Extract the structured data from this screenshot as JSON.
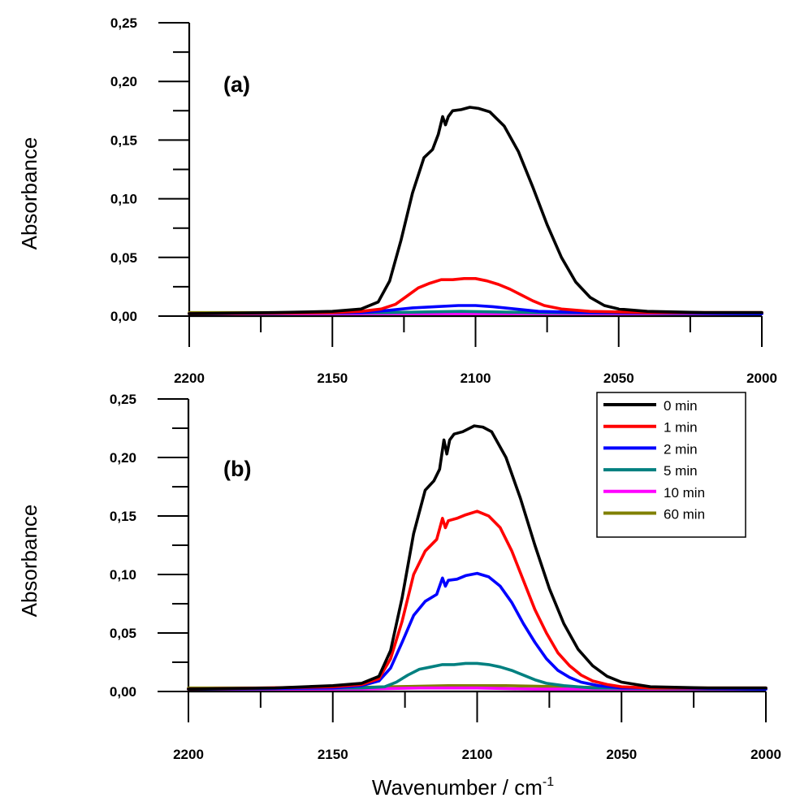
{
  "chart_data": [
    {
      "type": "line",
      "panel_label": "(a)",
      "xlabel": "",
      "ylabel": "Absorbance",
      "xlim": [
        2200,
        2000
      ],
      "ylim": [
        0,
        0.25
      ],
      "x_ticks": [
        "2200",
        "2150",
        "2100",
        "2050",
        "2000"
      ],
      "y_ticks": [
        "0,00",
        "0,05",
        "0,10",
        "0,15",
        "0,20",
        "0,25"
      ],
      "grid": false,
      "legend": null,
      "series": [
        {
          "name": "0 min",
          "color": "#000000",
          "points": [
            [
              2200,
              0.002
            ],
            [
              2170,
              0.003
            ],
            [
              2150,
              0.004
            ],
            [
              2140,
              0.006
            ],
            [
              2134,
              0.012
            ],
            [
              2130,
              0.03
            ],
            [
              2126,
              0.065
            ],
            [
              2122,
              0.105
            ],
            [
              2118,
              0.135
            ],
            [
              2115,
              0.142
            ],
            [
              2113,
              0.155
            ],
            [
              2111.5,
              0.17
            ],
            [
              2110.5,
              0.163
            ],
            [
              2109.5,
              0.17
            ],
            [
              2108,
              0.175
            ],
            [
              2105,
              0.176
            ],
            [
              2102,
              0.178
            ],
            [
              2099,
              0.177
            ],
            [
              2095,
              0.174
            ],
            [
              2090,
              0.162
            ],
            [
              2085,
              0.14
            ],
            [
              2080,
              0.11
            ],
            [
              2075,
              0.078
            ],
            [
              2070,
              0.05
            ],
            [
              2065,
              0.029
            ],
            [
              2060,
              0.016
            ],
            [
              2055,
              0.009
            ],
            [
              2050,
              0.006
            ],
            [
              2040,
              0.004
            ],
            [
              2020,
              0.003
            ],
            [
              2000,
              0.003
            ]
          ]
        },
        {
          "name": "1 min",
          "color": "#ff0000",
          "points": [
            [
              2200,
              0.002
            ],
            [
              2150,
              0.003
            ],
            [
              2140,
              0.004
            ],
            [
              2133,
              0.006
            ],
            [
              2128,
              0.01
            ],
            [
              2124,
              0.017
            ],
            [
              2120,
              0.024
            ],
            [
              2116,
              0.028
            ],
            [
              2112,
              0.031
            ],
            [
              2108,
              0.031
            ],
            [
              2104,
              0.032
            ],
            [
              2100,
              0.032
            ],
            [
              2096,
              0.03
            ],
            [
              2092,
              0.027
            ],
            [
              2088,
              0.023
            ],
            [
              2084,
              0.018
            ],
            [
              2080,
              0.013
            ],
            [
              2076,
              0.009
            ],
            [
              2070,
              0.006
            ],
            [
              2060,
              0.004
            ],
            [
              2040,
              0.003
            ],
            [
              2000,
              0.003
            ]
          ]
        },
        {
          "name": "2 min",
          "color": "#0000ff",
          "points": [
            [
              2200,
              0.002
            ],
            [
              2140,
              0.003
            ],
            [
              2130,
              0.005
            ],
            [
              2122,
              0.007
            ],
            [
              2114,
              0.008
            ],
            [
              2106,
              0.009
            ],
            [
              2100,
              0.009
            ],
            [
              2094,
              0.008
            ],
            [
              2086,
              0.006
            ],
            [
              2078,
              0.004
            ],
            [
              2060,
              0.003
            ],
            [
              2000,
              0.002
            ]
          ]
        },
        {
          "name": "5 min",
          "color": "#008080",
          "points": [
            [
              2200,
              0.002
            ],
            [
              2130,
              0.003
            ],
            [
              2105,
              0.004
            ],
            [
              2080,
              0.003
            ],
            [
              2000,
              0.002
            ]
          ]
        },
        {
          "name": "10 min",
          "color": "#ff00ff",
          "points": [
            [
              2200,
              0.002
            ],
            [
              2000,
              0.002
            ]
          ]
        },
        {
          "name": "60 min",
          "color": "#808000",
          "points": [
            [
              2200,
              0.003
            ],
            [
              2000,
              0.003
            ]
          ]
        }
      ]
    },
    {
      "type": "line",
      "panel_label": "(b)",
      "xlabel": "Wavenumber / cm",
      "xlabel_sup": "-1",
      "ylabel": "Absorbance",
      "xlim": [
        2200,
        2000
      ],
      "ylim": [
        0,
        0.25
      ],
      "x_ticks": [
        "2200",
        "2150",
        "2100",
        "2050",
        "2000"
      ],
      "y_ticks": [
        "0,00",
        "0,05",
        "0,10",
        "0,15",
        "0,20",
        "0,25"
      ],
      "grid": false,
      "legend": "top-right",
      "series": [
        {
          "name": "0 min",
          "color": "#000000",
          "points": [
            [
              2200,
              0.002
            ],
            [
              2170,
              0.003
            ],
            [
              2150,
              0.005
            ],
            [
              2140,
              0.007
            ],
            [
              2134,
              0.013
            ],
            [
              2130,
              0.035
            ],
            [
              2126,
              0.08
            ],
            [
              2122,
              0.135
            ],
            [
              2118,
              0.172
            ],
            [
              2115,
              0.18
            ],
            [
              2113,
              0.19
            ],
            [
              2111.5,
              0.215
            ],
            [
              2110.5,
              0.203
            ],
            [
              2109.5,
              0.215
            ],
            [
              2108,
              0.22
            ],
            [
              2105,
              0.222
            ],
            [
              2101,
              0.227
            ],
            [
              2098,
              0.226
            ],
            [
              2095,
              0.222
            ],
            [
              2090,
              0.2
            ],
            [
              2085,
              0.165
            ],
            [
              2080,
              0.125
            ],
            [
              2075,
              0.088
            ],
            [
              2070,
              0.058
            ],
            [
              2065,
              0.036
            ],
            [
              2060,
              0.022
            ],
            [
              2055,
              0.013
            ],
            [
              2050,
              0.008
            ],
            [
              2045,
              0.006
            ],
            [
              2040,
              0.004
            ],
            [
              2020,
              0.003
            ],
            [
              2000,
              0.003
            ]
          ]
        },
        {
          "name": "1 min",
          "color": "#ff0000",
          "points": [
            [
              2200,
              0.002
            ],
            [
              2150,
              0.004
            ],
            [
              2140,
              0.006
            ],
            [
              2134,
              0.011
            ],
            [
              2130,
              0.028
            ],
            [
              2126,
              0.06
            ],
            [
              2122,
              0.1
            ],
            [
              2118,
              0.12
            ],
            [
              2114,
              0.13
            ],
            [
              2112,
              0.148
            ],
            [
              2111,
              0.14
            ],
            [
              2110,
              0.146
            ],
            [
              2107,
              0.148
            ],
            [
              2104,
              0.151
            ],
            [
              2100,
              0.154
            ],
            [
              2096,
              0.15
            ],
            [
              2092,
              0.14
            ],
            [
              2088,
              0.12
            ],
            [
              2084,
              0.095
            ],
            [
              2080,
              0.07
            ],
            [
              2076,
              0.05
            ],
            [
              2072,
              0.033
            ],
            [
              2068,
              0.022
            ],
            [
              2064,
              0.014
            ],
            [
              2060,
              0.009
            ],
            [
              2055,
              0.006
            ],
            [
              2050,
              0.004
            ],
            [
              2040,
              0.003
            ],
            [
              2000,
              0.003
            ]
          ]
        },
        {
          "name": "2 min",
          "color": "#0000ff",
          "points": [
            [
              2200,
              0.002
            ],
            [
              2150,
              0.003
            ],
            [
              2140,
              0.005
            ],
            [
              2134,
              0.009
            ],
            [
              2130,
              0.02
            ],
            [
              2126,
              0.042
            ],
            [
              2122,
              0.065
            ],
            [
              2118,
              0.077
            ],
            [
              2114,
              0.083
            ],
            [
              2112,
              0.097
            ],
            [
              2111,
              0.09
            ],
            [
              2110,
              0.095
            ],
            [
              2107,
              0.096
            ],
            [
              2104,
              0.099
            ],
            [
              2100,
              0.101
            ],
            [
              2096,
              0.098
            ],
            [
              2092,
              0.09
            ],
            [
              2088,
              0.076
            ],
            [
              2084,
              0.058
            ],
            [
              2080,
              0.042
            ],
            [
              2076,
              0.028
            ],
            [
              2072,
              0.018
            ],
            [
              2068,
              0.012
            ],
            [
              2064,
              0.008
            ],
            [
              2058,
              0.005
            ],
            [
              2050,
              0.003
            ],
            [
              2040,
              0.003
            ],
            [
              2000,
              0.002
            ]
          ]
        },
        {
          "name": "5 min",
          "color": "#008080",
          "points": [
            [
              2200,
              0.002
            ],
            [
              2140,
              0.003
            ],
            [
              2132,
              0.004
            ],
            [
              2128,
              0.008
            ],
            [
              2124,
              0.014
            ],
            [
              2120,
              0.019
            ],
            [
              2116,
              0.021
            ],
            [
              2112,
              0.023
            ],
            [
              2108,
              0.023
            ],
            [
              2104,
              0.024
            ],
            [
              2100,
              0.024
            ],
            [
              2096,
              0.023
            ],
            [
              2092,
              0.021
            ],
            [
              2088,
              0.018
            ],
            [
              2084,
              0.014
            ],
            [
              2080,
              0.01
            ],
            [
              2076,
              0.007
            ],
            [
              2070,
              0.005
            ],
            [
              2060,
              0.003
            ],
            [
              2000,
              0.002
            ]
          ]
        },
        {
          "name": "10 min",
          "color": "#ff00ff",
          "points": [
            [
              2200,
              0.002
            ],
            [
              2140,
              0.002
            ],
            [
              2120,
              0.003
            ],
            [
              2100,
              0.003
            ],
            [
              2080,
              0.002
            ],
            [
              2000,
              0.002
            ]
          ]
        },
        {
          "name": "60 min",
          "color": "#808000",
          "points": [
            [
              2200,
              0.003
            ],
            [
              2150,
              0.003
            ],
            [
              2130,
              0.004
            ],
            [
              2110,
              0.005
            ],
            [
              2100,
              0.005
            ],
            [
              2090,
              0.005
            ],
            [
              2070,
              0.004
            ],
            [
              2050,
              0.003
            ],
            [
              2000,
              0.003
            ]
          ]
        }
      ]
    }
  ]
}
